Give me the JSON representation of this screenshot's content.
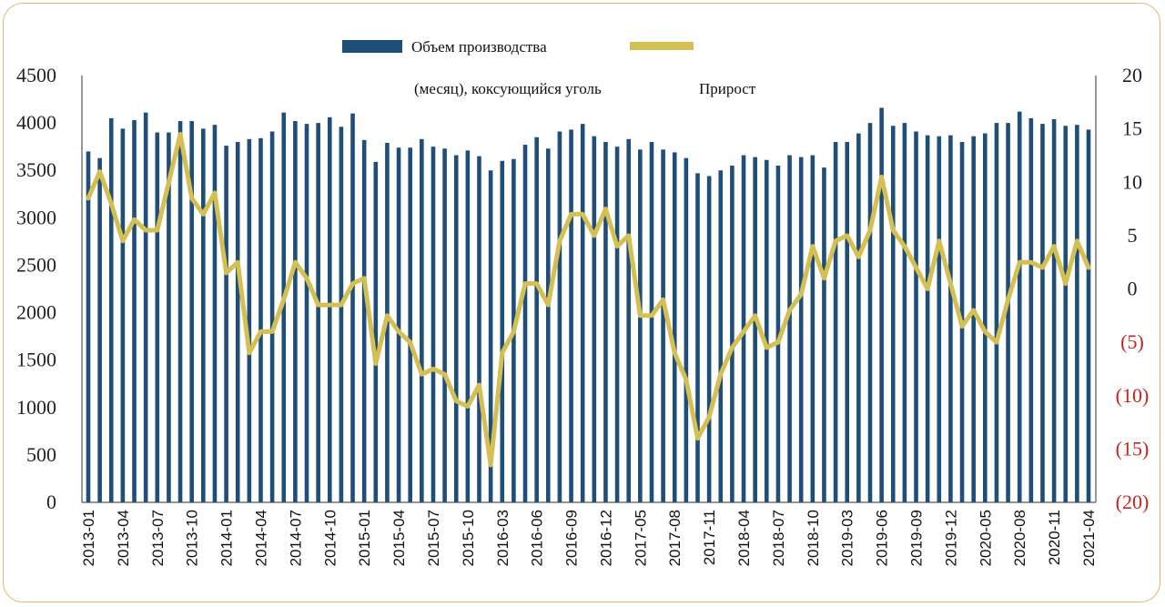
{
  "chart_data": {
    "type": "bar",
    "title": "",
    "legend": {
      "bar_label": "Объем производства",
      "line_label_part1": "(месяц), коксующийся уголь",
      "line_label_part2": "Прирост",
      "placement": "top"
    },
    "colors": {
      "bar": "#1f4e79",
      "line": "#d4bf52",
      "negative_label": "#c8221e"
    },
    "y_left": {
      "range": [
        0,
        4500
      ],
      "ticks": [
        "0",
        "500",
        "1000",
        "1500",
        "2000",
        "2500",
        "3000",
        "3500",
        "4000",
        "4500"
      ]
    },
    "y_right": {
      "range": [
        -20,
        20
      ],
      "ticks": [
        "(20)",
        "(15)",
        "(10)",
        "(5)",
        "0",
        "5",
        "10",
        "15",
        "20"
      ]
    },
    "x_tick_labels": [
      "2013-01",
      "2013-04",
      "2013-07",
      "2013-10",
      "2014-01",
      "2014-04",
      "2014-07",
      "2014-10",
      "2015-01",
      "2015-04",
      "2015-07",
      "2015-10",
      "2016-03",
      "2016-06",
      "2016-09",
      "2016-12",
      "2017-05",
      "2017-08",
      "2017-11",
      "2018-04",
      "2018-07",
      "2018-10",
      "2019-03",
      "2019-06",
      "2019-09",
      "2019-12",
      "2020-05",
      "2020-08",
      "2020-11",
      "2021-04"
    ],
    "bars": [
      3700,
      3630,
      4050,
      3940,
      4030,
      4110,
      3900,
      3900,
      4020,
      4020,
      3940,
      3980,
      3760,
      3800,
      3830,
      3840,
      3910,
      4110,
      4020,
      3990,
      4000,
      4060,
      3960,
      4100,
      3820,
      3590,
      3790,
      3740,
      3740,
      3830,
      3750,
      3730,
      3660,
      3710,
      3650,
      3500,
      3600,
      3620,
      3770,
      3850,
      3730,
      3910,
      3930,
      3990,
      3860,
      3800,
      3750,
      3830,
      3720,
      3800,
      3720,
      3690,
      3630,
      3470,
      3440,
      3500,
      3550,
      3660,
      3640,
      3610,
      3550,
      3660,
      3640,
      3660,
      3530,
      3800,
      3800,
      3890,
      4000,
      4160,
      3970,
      4000,
      3910,
      3870,
      3860,
      3870,
      3800,
      3860,
      3890,
      4000,
      4000,
      4120,
      4050,
      3990,
      4040,
      3970,
      3980,
      3930
    ],
    "growth": [
      8.5,
      11,
      8,
      4.5,
      6.5,
      5.5,
      5.5,
      10,
      14.5,
      8.5,
      7,
      9,
      1.5,
      2.5,
      -6,
      -4,
      -4,
      -1,
      2.5,
      1,
      -1.5,
      -1.5,
      -1.5,
      0.5,
      1,
      -7,
      -2.5,
      -4,
      -5,
      -8,
      -7.5,
      -8,
      -10.5,
      -11,
      -9,
      -16.5,
      -6,
      -4,
      0.5,
      0.5,
      -1.5,
      4.5,
      7,
      7,
      5,
      7.5,
      4,
      5,
      -2.5,
      -2.5,
      -1,
      -6,
      -8.5,
      -14,
      -12,
      -8,
      -5.5,
      -4,
      -2.5,
      -5.5,
      -5,
      -2,
      -0.5,
      4,
      1,
      4.5,
      5,
      3,
      5.5,
      10.5,
      5.5,
      4,
      2,
      0,
      4.5,
      0.5,
      -3.5,
      -2,
      -4,
      -5,
      -1,
      2.5,
      2.5,
      2,
      4,
      0.5,
      4.5,
      2
    ]
  }
}
